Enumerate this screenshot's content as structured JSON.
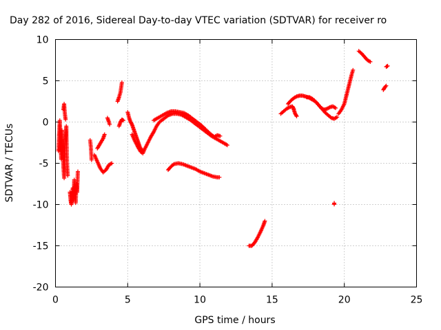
{
  "chart_data": {
    "type": "scatter",
    "title": "Day 282 of 2016, Sidereal Day-to-day VTEC variation (SDTVAR) for receiver ro",
    "xlabel": "GPS time / hours",
    "ylabel": "SDTVAR / TECUs",
    "xlim": [
      0,
      25
    ],
    "ylim": [
      -20,
      10
    ],
    "xticks": [
      "0",
      "5",
      "10",
      "15",
      "20",
      "25"
    ],
    "yticks": [
      "-20",
      "-15",
      "-10",
      "-5",
      "0",
      "5",
      "10"
    ],
    "grid": true,
    "marker": "plus",
    "color": "#ff0000",
    "segments": [
      [
        [
          0.2,
          -3.5
        ],
        [
          0.25,
          -1.5
        ],
        [
          0.3,
          0.2
        ],
        [
          0.35,
          -2.5
        ],
        [
          0.4,
          -4.5
        ],
        [
          0.45,
          -1.0
        ],
        [
          0.5,
          -3.0
        ],
        [
          0.55,
          -5.5
        ],
        [
          0.6,
          -6.8
        ],
        [
          0.65,
          -4.0
        ],
        [
          0.7,
          -2.0
        ],
        [
          0.75,
          -0.5
        ],
        [
          0.8,
          -5.0
        ],
        [
          0.85,
          -6.5
        ]
      ],
      [
        [
          0.55,
          1.5
        ],
        [
          0.6,
          2.2
        ],
        [
          0.65,
          1.0
        ],
        [
          0.7,
          0.3
        ]
      ],
      [
        [
          1.0,
          -8.5
        ],
        [
          1.05,
          -9.5
        ],
        [
          1.1,
          -10.0
        ],
        [
          1.15,
          -9.0
        ],
        [
          1.2,
          -8.0
        ],
        [
          1.25,
          -9.5
        ],
        [
          1.3,
          -7.0
        ],
        [
          1.35,
          -8.5
        ],
        [
          1.4,
          -9.8
        ],
        [
          1.45,
          -7.5
        ],
        [
          1.5,
          -8.5
        ],
        [
          1.55,
          -6.0
        ]
      ],
      [
        [
          2.4,
          -2.2
        ],
        [
          2.45,
          -3.0
        ],
        [
          2.5,
          -4.6
        ]
      ],
      [
        [
          2.7,
          -4.0
        ],
        [
          2.9,
          -4.8
        ],
        [
          3.1,
          -5.6
        ],
        [
          3.3,
          -6.1
        ],
        [
          3.5,
          -5.8
        ],
        [
          3.7,
          -5.2
        ],
        [
          3.9,
          -5.0
        ]
      ],
      [
        [
          2.9,
          -3.2
        ],
        [
          3.1,
          -2.6
        ],
        [
          3.3,
          -2.0
        ],
        [
          3.4,
          -1.5
        ]
      ],
      [
        [
          3.6,
          0.5
        ],
        [
          3.7,
          0.0
        ],
        [
          3.75,
          -0.3
        ]
      ],
      [
        [
          4.3,
          2.5
        ],
        [
          4.4,
          3.0
        ],
        [
          4.5,
          3.6
        ],
        [
          4.55,
          4.2
        ],
        [
          4.6,
          4.8
        ]
      ],
      [
        [
          4.4,
          -0.5
        ],
        [
          4.5,
          0.0
        ],
        [
          4.6,
          0.3
        ],
        [
          4.7,
          0.2
        ]
      ],
      [
        [
          5.0,
          1.2
        ],
        [
          5.1,
          0.5
        ],
        [
          5.2,
          0.0
        ],
        [
          5.3,
          -0.3
        ],
        [
          5.4,
          -0.8
        ],
        [
          5.5,
          -1.3
        ],
        [
          5.6,
          -1.8
        ],
        [
          5.7,
          -2.3
        ],
        [
          5.8,
          -2.8
        ],
        [
          5.9,
          -3.2
        ],
        [
          6.0,
          -3.5
        ],
        [
          6.1,
          -3.5
        ]
      ],
      [
        [
          5.3,
          -1.5
        ],
        [
          5.5,
          -2.3
        ],
        [
          5.7,
          -3.0
        ],
        [
          5.9,
          -3.6
        ],
        [
          6.05,
          -3.8
        ],
        [
          6.2,
          -3.2
        ],
        [
          6.4,
          -2.5
        ],
        [
          6.6,
          -1.8
        ],
        [
          6.8,
          -1.2
        ],
        [
          7.0,
          -0.5
        ],
        [
          7.2,
          0.0
        ],
        [
          7.5,
          0.4
        ],
        [
          7.8,
          0.8
        ],
        [
          8.1,
          1.0
        ],
        [
          8.4,
          1.0
        ],
        [
          8.7,
          0.9
        ],
        [
          9.0,
          0.6
        ],
        [
          9.3,
          0.3
        ],
        [
          9.6,
          -0.1
        ],
        [
          9.9,
          -0.5
        ],
        [
          10.2,
          -0.9
        ],
        [
          10.5,
          -1.3
        ],
        [
          10.8,
          -1.7
        ],
        [
          11.1,
          -2.0
        ],
        [
          11.4,
          -2.3
        ],
        [
          11.7,
          -2.6
        ],
        [
          11.9,
          -2.8
        ]
      ],
      [
        [
          6.8,
          0.2
        ],
        [
          7.1,
          0.5
        ],
        [
          7.4,
          0.8
        ],
        [
          7.7,
          1.1
        ],
        [
          8.0,
          1.3
        ],
        [
          8.3,
          1.3
        ],
        [
          8.6,
          1.2
        ],
        [
          8.9,
          1.1
        ],
        [
          9.2,
          0.8
        ],
        [
          9.5,
          0.4
        ],
        [
          9.8,
          0.0
        ],
        [
          10.1,
          -0.4
        ],
        [
          10.4,
          -0.9
        ],
        [
          10.7,
          -1.4
        ],
        [
          11.0,
          -1.8
        ],
        [
          11.2,
          -1.6
        ],
        [
          11.4,
          -1.7
        ]
      ],
      [
        [
          7.8,
          -5.8
        ],
        [
          8.0,
          -5.4
        ],
        [
          8.2,
          -5.1
        ],
        [
          8.5,
          -5.0
        ],
        [
          8.8,
          -5.1
        ],
        [
          9.1,
          -5.3
        ],
        [
          9.4,
          -5.5
        ],
        [
          9.7,
          -5.7
        ],
        [
          10.0,
          -6.0
        ],
        [
          10.3,
          -6.2
        ],
        [
          10.6,
          -6.4
        ],
        [
          10.9,
          -6.6
        ],
        [
          11.2,
          -6.7
        ],
        [
          11.35,
          -6.7
        ]
      ],
      [
        [
          13.4,
          -15.0
        ],
        [
          13.6,
          -15.0
        ],
        [
          13.8,
          -14.6
        ],
        [
          14.0,
          -14.0
        ],
        [
          14.2,
          -13.3
        ],
        [
          14.4,
          -12.5
        ],
        [
          14.5,
          -12.0
        ]
      ],
      [
        [
          15.6,
          1.0
        ],
        [
          15.8,
          1.3
        ],
        [
          16.0,
          1.6
        ],
        [
          16.2,
          1.8
        ],
        [
          16.4,
          1.9
        ],
        [
          16.5,
          1.6
        ]
      ],
      [
        [
          16.1,
          2.2
        ],
        [
          16.3,
          2.6
        ],
        [
          16.5,
          2.9
        ],
        [
          16.7,
          3.1
        ],
        [
          16.9,
          3.2
        ],
        [
          17.1,
          3.2
        ],
        [
          17.3,
          3.1
        ],
        [
          17.5,
          3.0
        ],
        [
          17.7,
          2.8
        ],
        [
          17.9,
          2.6
        ],
        [
          18.1,
          2.3
        ],
        [
          18.3,
          1.9
        ],
        [
          18.5,
          1.5
        ],
        [
          18.7,
          1.1
        ],
        [
          18.9,
          0.8
        ],
        [
          19.1,
          0.5
        ],
        [
          19.3,
          0.4
        ],
        [
          19.5,
          0.6
        ]
      ],
      [
        [
          16.5,
          1.5
        ],
        [
          16.6,
          1.0
        ],
        [
          16.7,
          0.7
        ]
      ],
      [
        [
          17.4,
          3.0
        ],
        [
          17.6,
          3.0
        ],
        [
          17.8,
          2.8
        ],
        [
          18.0,
          2.5
        ],
        [
          18.2,
          2.1
        ],
        [
          18.4,
          1.7
        ],
        [
          18.6,
          1.5
        ],
        [
          18.8,
          1.6
        ],
        [
          19.0,
          1.8
        ],
        [
          19.2,
          1.9
        ],
        [
          19.4,
          1.7
        ]
      ],
      [
        [
          19.6,
          1.0
        ],
        [
          19.8,
          1.5
        ],
        [
          20.0,
          2.2
        ],
        [
          20.1,
          2.9
        ],
        [
          20.2,
          3.6
        ],
        [
          20.3,
          4.3
        ],
        [
          20.4,
          5.0
        ],
        [
          20.5,
          5.7
        ],
        [
          20.6,
          6.3
        ]
      ],
      [
        [
          19.3,
          -9.9
        ]
      ],
      [
        [
          21.0,
          8.6
        ],
        [
          21.2,
          8.3
        ],
        [
          21.4,
          7.9
        ],
        [
          21.6,
          7.5
        ],
        [
          21.8,
          7.3
        ]
      ],
      [
        [
          22.7,
          3.9
        ],
        [
          22.8,
          4.2
        ],
        [
          22.9,
          4.4
        ]
      ],
      [
        [
          22.9,
          6.7
        ],
        [
          23.0,
          6.8
        ]
      ]
    ]
  }
}
